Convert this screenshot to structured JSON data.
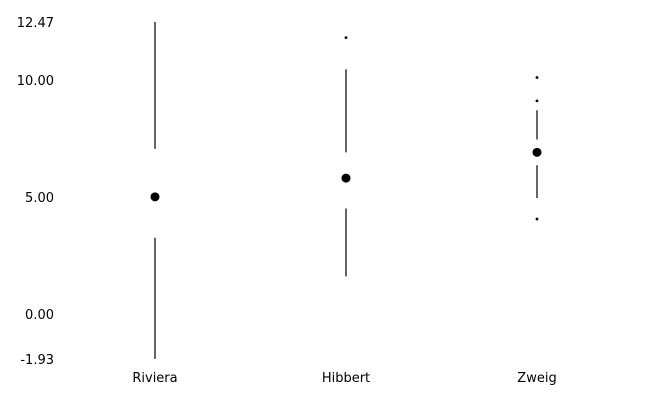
{
  "chart_data": {
    "type": "boxplot",
    "style": "minimal (Tufte-style): no boxes, whiskers as lines, median as dot, outliers as small dots",
    "categories": [
      "Riviera",
      "Hibbert",
      "Zweig"
    ],
    "y_ticks": [
      "12.47",
      "10.00",
      "5.00",
      "0.00",
      "-1.93"
    ],
    "ylim": [
      -1.93,
      12.47
    ],
    "grid": false,
    "series": [
      {
        "category": "Riviera",
        "whisker_low": -1.93,
        "q1": 3.25,
        "median": 5.0,
        "q3": 7.05,
        "whisker_high": 12.47,
        "outliers": []
      },
      {
        "category": "Hibbert",
        "whisker_low": 1.6,
        "q1": 4.5,
        "median": 5.8,
        "q3": 6.9,
        "whisker_high": 10.45,
        "outliers": [
          11.8
        ]
      },
      {
        "category": "Zweig",
        "whisker_low": 4.95,
        "q1": 6.35,
        "median": 6.9,
        "q3": 7.45,
        "whisker_high": 8.7,
        "outliers": [
          4.05,
          9.1,
          10.1
        ]
      }
    ],
    "colors": {
      "marks": "#000000",
      "background": "#ffffff"
    }
  }
}
